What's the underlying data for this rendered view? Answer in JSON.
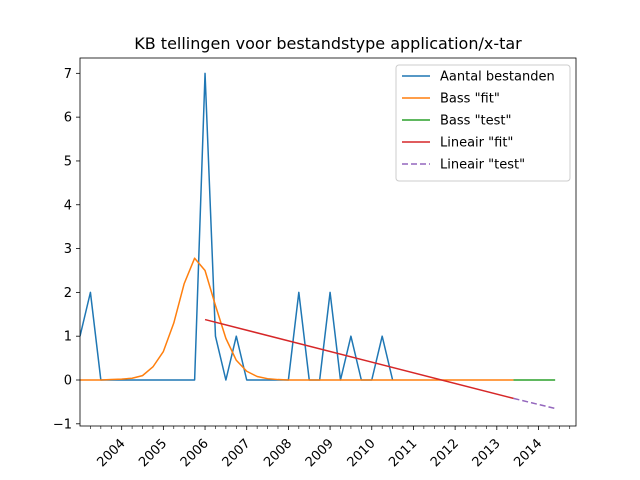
{
  "chart_data": {
    "type": "line",
    "title": "KB tellingen voor bestandstype application/x-tar",
    "xlabel": "",
    "ylabel": "",
    "xlim": [
      2003.0,
      2014.9
    ],
    "ylim": [
      -1.05,
      7.35
    ],
    "yticks": [
      -1,
      0,
      1,
      2,
      3,
      4,
      5,
      6,
      7
    ],
    "xtick_labels": [
      "2004",
      "2005",
      "2006",
      "2007",
      "2008",
      "2009",
      "2010",
      "2011",
      "2012",
      "2013",
      "2014"
    ],
    "xtick_positions": [
      2004,
      2005,
      2006,
      2007,
      2008,
      2009,
      2010,
      2011,
      2012,
      2013,
      2014
    ],
    "minor_xticks": [
      2003.25,
      2003.5,
      2003.75,
      2004.25,
      2004.5,
      2004.75,
      2005.25,
      2005.5,
      2005.75,
      2006.25,
      2006.5,
      2006.75,
      2007.25,
      2007.5,
      2007.75,
      2008.25,
      2008.5,
      2008.75,
      2009.25,
      2009.5,
      2009.75,
      2010.25,
      2010.5,
      2010.75,
      2011.25,
      2011.5,
      2011.75,
      2012.25,
      2012.5,
      2012.75,
      2013.25,
      2013.5,
      2013.75,
      2014.25,
      2014.5,
      2014.75
    ],
    "legend_position": "top-right",
    "grid": false,
    "series": [
      {
        "name": "Aantal bestanden",
        "color": "#1f77b4",
        "style": "solid",
        "points": [
          [
            2003.0,
            1
          ],
          [
            2003.25,
            2
          ],
          [
            2003.5,
            0
          ],
          [
            2003.75,
            0
          ],
          [
            2004.0,
            0
          ],
          [
            2004.25,
            0
          ],
          [
            2004.5,
            0
          ],
          [
            2004.75,
            0
          ],
          [
            2005.0,
            0
          ],
          [
            2005.25,
            0
          ],
          [
            2005.5,
            0
          ],
          [
            2005.75,
            0
          ],
          [
            2006.0,
            7
          ],
          [
            2006.25,
            1
          ],
          [
            2006.5,
            0
          ],
          [
            2006.75,
            1
          ],
          [
            2007.0,
            0
          ],
          [
            2007.25,
            0
          ],
          [
            2007.5,
            0
          ],
          [
            2007.75,
            0
          ],
          [
            2008.0,
            0
          ],
          [
            2008.25,
            2
          ],
          [
            2008.5,
            0
          ],
          [
            2008.75,
            0
          ],
          [
            2009.0,
            2
          ],
          [
            2009.25,
            0
          ],
          [
            2009.5,
            1
          ],
          [
            2009.75,
            0
          ],
          [
            2010.0,
            0
          ],
          [
            2010.25,
            1
          ],
          [
            2010.5,
            0
          ]
        ]
      },
      {
        "name": "Bass \"fit\"",
        "color": "#ff7f0e",
        "style": "solid",
        "points": [
          [
            2003.0,
            0
          ],
          [
            2003.25,
            0
          ],
          [
            2003.5,
            0
          ],
          [
            2003.75,
            0.01
          ],
          [
            2004.0,
            0.02
          ],
          [
            2004.25,
            0.04
          ],
          [
            2004.5,
            0.1
          ],
          [
            2004.75,
            0.3
          ],
          [
            2005.0,
            0.65
          ],
          [
            2005.25,
            1.3
          ],
          [
            2005.5,
            2.2
          ],
          [
            2005.75,
            2.78
          ],
          [
            2006.0,
            2.5
          ],
          [
            2006.25,
            1.7
          ],
          [
            2006.5,
            0.95
          ],
          [
            2006.75,
            0.45
          ],
          [
            2007.0,
            0.2
          ],
          [
            2007.25,
            0.08
          ],
          [
            2007.5,
            0.03
          ],
          [
            2007.75,
            0.01
          ],
          [
            2008.0,
            0
          ],
          [
            2008.5,
            0
          ],
          [
            2009.0,
            0
          ],
          [
            2009.5,
            0
          ],
          [
            2010.0,
            0
          ],
          [
            2010.5,
            0
          ],
          [
            2011.0,
            0
          ],
          [
            2011.5,
            0
          ],
          [
            2012.0,
            0
          ],
          [
            2012.5,
            0
          ],
          [
            2013.0,
            0
          ],
          [
            2013.4,
            0
          ]
        ]
      },
      {
        "name": "Bass \"test\"",
        "color": "#2ca02c",
        "style": "solid",
        "points": [
          [
            2013.4,
            0
          ],
          [
            2014.4,
            0
          ]
        ]
      },
      {
        "name": "Lineair \"fit\"",
        "color": "#d62728",
        "style": "solid",
        "points": [
          [
            2006.0,
            1.38
          ],
          [
            2013.4,
            -0.42
          ]
        ]
      },
      {
        "name": "Lineair \"test\"",
        "color": "#9467bd",
        "style": "dashed",
        "points": [
          [
            2013.4,
            -0.42
          ],
          [
            2014.4,
            -0.65
          ]
        ]
      }
    ]
  }
}
